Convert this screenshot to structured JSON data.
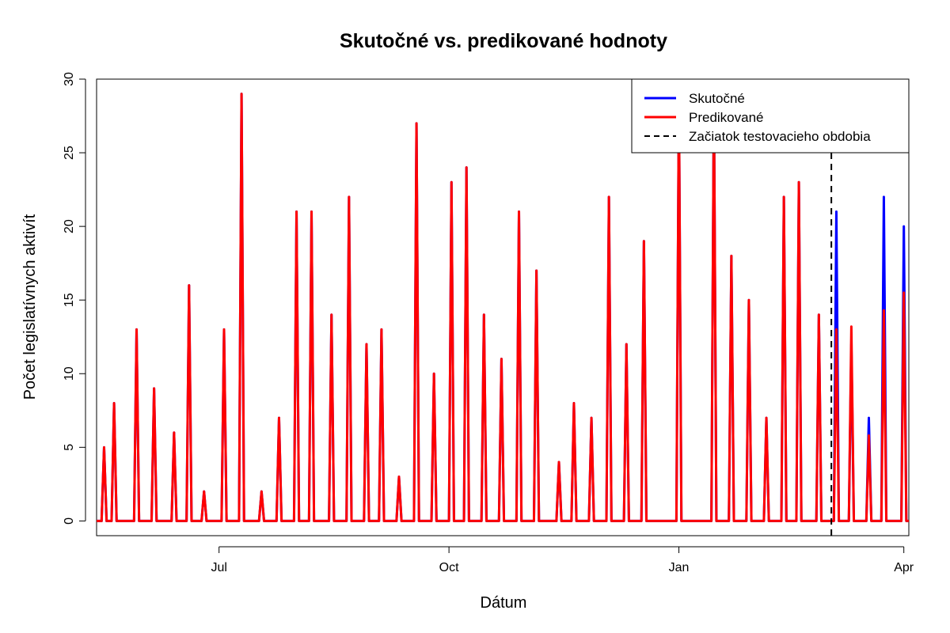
{
  "chart_data": {
    "type": "line",
    "title": "Skutočné vs. predikované hodnoty",
    "xlabel": "Dátum",
    "ylabel": "Počet legislatívnych aktivít",
    "x_domain": [
      "2024-05-13",
      "2025-04-03"
    ],
    "ylim": [
      -1,
      30
    ],
    "y_ticks": [
      0,
      5,
      10,
      15,
      20,
      25,
      30
    ],
    "x_ticks": [
      {
        "date": "2024-07-01",
        "label": "Jul"
      },
      {
        "date": "2024-10-01",
        "label": "Oct"
      },
      {
        "date": "2025-01-01",
        "label": "Jan"
      },
      {
        "date": "2025-04-01",
        "label": "Apr"
      }
    ],
    "grid": false,
    "legend_position": "top-right",
    "test_start": "2025-03-03",
    "series": [
      {
        "name": "Skutočné",
        "color": "#0000ff",
        "peaks": [
          [
            "2024-05-16",
            5
          ],
          [
            "2024-05-20",
            8
          ],
          [
            "2024-05-29",
            13
          ],
          [
            "2024-06-05",
            9
          ],
          [
            "2024-06-13",
            6
          ],
          [
            "2024-06-19",
            16
          ],
          [
            "2024-06-25",
            2
          ],
          [
            "2024-07-03",
            13
          ],
          [
            "2024-07-10",
            29
          ],
          [
            "2024-07-18",
            2
          ],
          [
            "2024-07-25",
            7
          ],
          [
            "2024-08-01",
            21
          ],
          [
            "2024-08-07",
            21
          ],
          [
            "2024-08-15",
            14
          ],
          [
            "2024-08-22",
            22
          ],
          [
            "2024-08-29",
            12
          ],
          [
            "2024-09-04",
            13
          ],
          [
            "2024-09-11",
            3
          ],
          [
            "2024-09-18",
            27
          ],
          [
            "2024-09-25",
            10
          ],
          [
            "2024-10-02",
            23
          ],
          [
            "2024-10-08",
            24
          ],
          [
            "2024-10-15",
            14
          ],
          [
            "2024-10-22",
            11
          ],
          [
            "2024-10-29",
            21
          ],
          [
            "2024-11-05",
            17
          ],
          [
            "2024-11-14",
            4
          ],
          [
            "2024-11-20",
            8
          ],
          [
            "2024-11-27",
            7
          ],
          [
            "2024-12-04",
            22
          ],
          [
            "2024-12-11",
            12
          ],
          [
            "2024-12-18",
            19
          ],
          [
            "2025-01-01",
            29
          ],
          [
            "2025-01-15",
            29
          ],
          [
            "2025-01-22",
            18
          ],
          [
            "2025-01-29",
            15
          ],
          [
            "2025-02-05",
            7
          ],
          [
            "2025-02-12",
            22
          ],
          [
            "2025-02-18",
            23
          ],
          [
            "2025-02-26",
            14
          ],
          [
            "2025-03-05",
            21
          ],
          [
            "2025-03-11",
            12
          ],
          [
            "2025-03-18",
            7
          ],
          [
            "2025-03-24",
            22
          ],
          [
            "2025-04-01",
            20
          ]
        ]
      },
      {
        "name": "Predikované",
        "color": "#ff0000",
        "peaks": [
          [
            "2024-05-16",
            5
          ],
          [
            "2024-05-20",
            8
          ],
          [
            "2024-05-29",
            13
          ],
          [
            "2024-06-05",
            9
          ],
          [
            "2024-06-13",
            6
          ],
          [
            "2024-06-19",
            16
          ],
          [
            "2024-06-25",
            2
          ],
          [
            "2024-07-03",
            13
          ],
          [
            "2024-07-10",
            29
          ],
          [
            "2024-07-18",
            2
          ],
          [
            "2024-07-25",
            7
          ],
          [
            "2024-08-01",
            21
          ],
          [
            "2024-08-07",
            21
          ],
          [
            "2024-08-15",
            14
          ],
          [
            "2024-08-22",
            22
          ],
          [
            "2024-08-29",
            12
          ],
          [
            "2024-09-04",
            13
          ],
          [
            "2024-09-11",
            3
          ],
          [
            "2024-09-18",
            27
          ],
          [
            "2024-09-25",
            10
          ],
          [
            "2024-10-02",
            23
          ],
          [
            "2024-10-08",
            24
          ],
          [
            "2024-10-15",
            14
          ],
          [
            "2024-10-22",
            11
          ],
          [
            "2024-10-29",
            21
          ],
          [
            "2024-11-05",
            17
          ],
          [
            "2024-11-14",
            4
          ],
          [
            "2024-11-20",
            8
          ],
          [
            "2024-11-27",
            7
          ],
          [
            "2024-12-04",
            22
          ],
          [
            "2024-12-11",
            12
          ],
          [
            "2024-12-18",
            19
          ],
          [
            "2025-01-01",
            29
          ],
          [
            "2025-01-15",
            29
          ],
          [
            "2025-01-22",
            18
          ],
          [
            "2025-01-29",
            15
          ],
          [
            "2025-02-05",
            7
          ],
          [
            "2025-02-12",
            22
          ],
          [
            "2025-02-18",
            23
          ],
          [
            "2025-02-26",
            14
          ],
          [
            "2025-03-05",
            13
          ],
          [
            "2025-03-11",
            13.2
          ],
          [
            "2025-03-18",
            5.8
          ],
          [
            "2025-03-24",
            14.3
          ],
          [
            "2025-04-01",
            15.5
          ]
        ]
      }
    ],
    "legend": {
      "actual": "Skutočné",
      "predicted": "Predikované",
      "test_start": "Začiatok testovacieho obdobia"
    }
  }
}
